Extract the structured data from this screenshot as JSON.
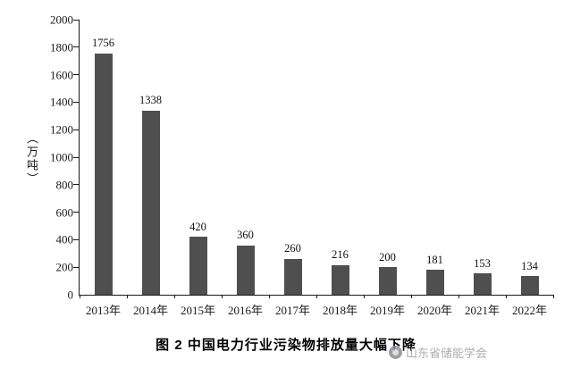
{
  "caption": {
    "text": "图 2  中国电力行业污染物排放量大幅下降"
  },
  "watermark": {
    "text": "山东省储能学会",
    "icon": "circle-logo-icon"
  },
  "chart_data": {
    "type": "bar",
    "title": "图 2 中国电力行业污染物排放量大幅下降",
    "xlabel": "",
    "ylabel": "（万吨）",
    "categories": [
      "2013年",
      "2014年",
      "2015年",
      "2016年",
      "2017年",
      "2018年",
      "2019年",
      "2020年",
      "2021年",
      "2022年"
    ],
    "values": [
      1756,
      1338,
      420,
      360,
      260,
      216,
      200,
      181,
      153,
      134
    ],
    "ylim": [
      0,
      2000
    ],
    "yticks": [
      0,
      200,
      400,
      600,
      800,
      1000,
      1200,
      1400,
      1600,
      1800,
      2000
    ],
    "bar_color": "#4f4f4f",
    "grid": false,
    "legend": "none",
    "value_labels": true
  }
}
